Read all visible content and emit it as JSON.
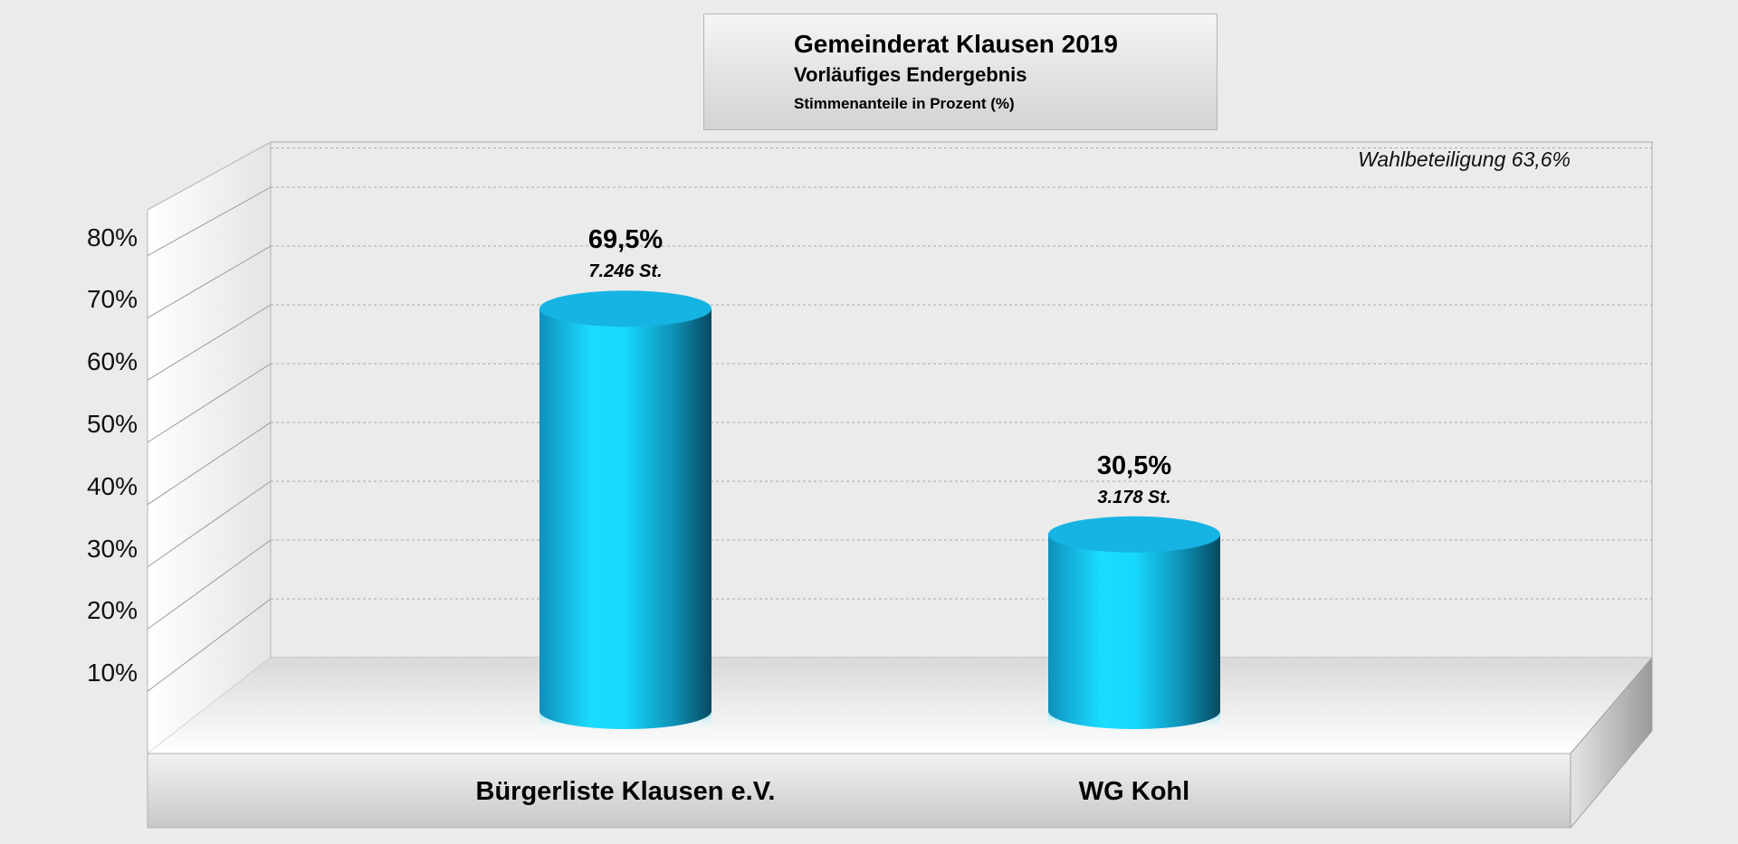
{
  "chart_data": {
    "type": "bar",
    "title": "Gemeinderat Klausen 2019",
    "subtitle": "Vorläufiges Endergebnis",
    "ylabel": "Stimmenanteile in Prozent (%)",
    "annotation": "Wahlbeteiligung 63,6%",
    "categories": [
      "Bürgerliste Klausen e.V.",
      "WG Kohl"
    ],
    "values": [
      69.5,
      30.5
    ],
    "value_labels": [
      "69,5%",
      "30,5%"
    ],
    "votes": [
      7246,
      3178
    ],
    "vote_labels": [
      "7.246 St.",
      "3.178 St."
    ],
    "ylim": [
      0,
      80
    ],
    "yticks": [
      10,
      20,
      30,
      40,
      50,
      60,
      70,
      80
    ],
    "ytick_labels": [
      "10%",
      "20%",
      "30%",
      "40%",
      "50%",
      "60%",
      "70%",
      "80%"
    ],
    "grid": true,
    "bar_style": "3d-cylinder",
    "colors": {
      "bar": "#19c8f0",
      "bar_top": "#16b4e2",
      "bar_dark": "#0a5f78",
      "background": "#ebebeb"
    }
  }
}
